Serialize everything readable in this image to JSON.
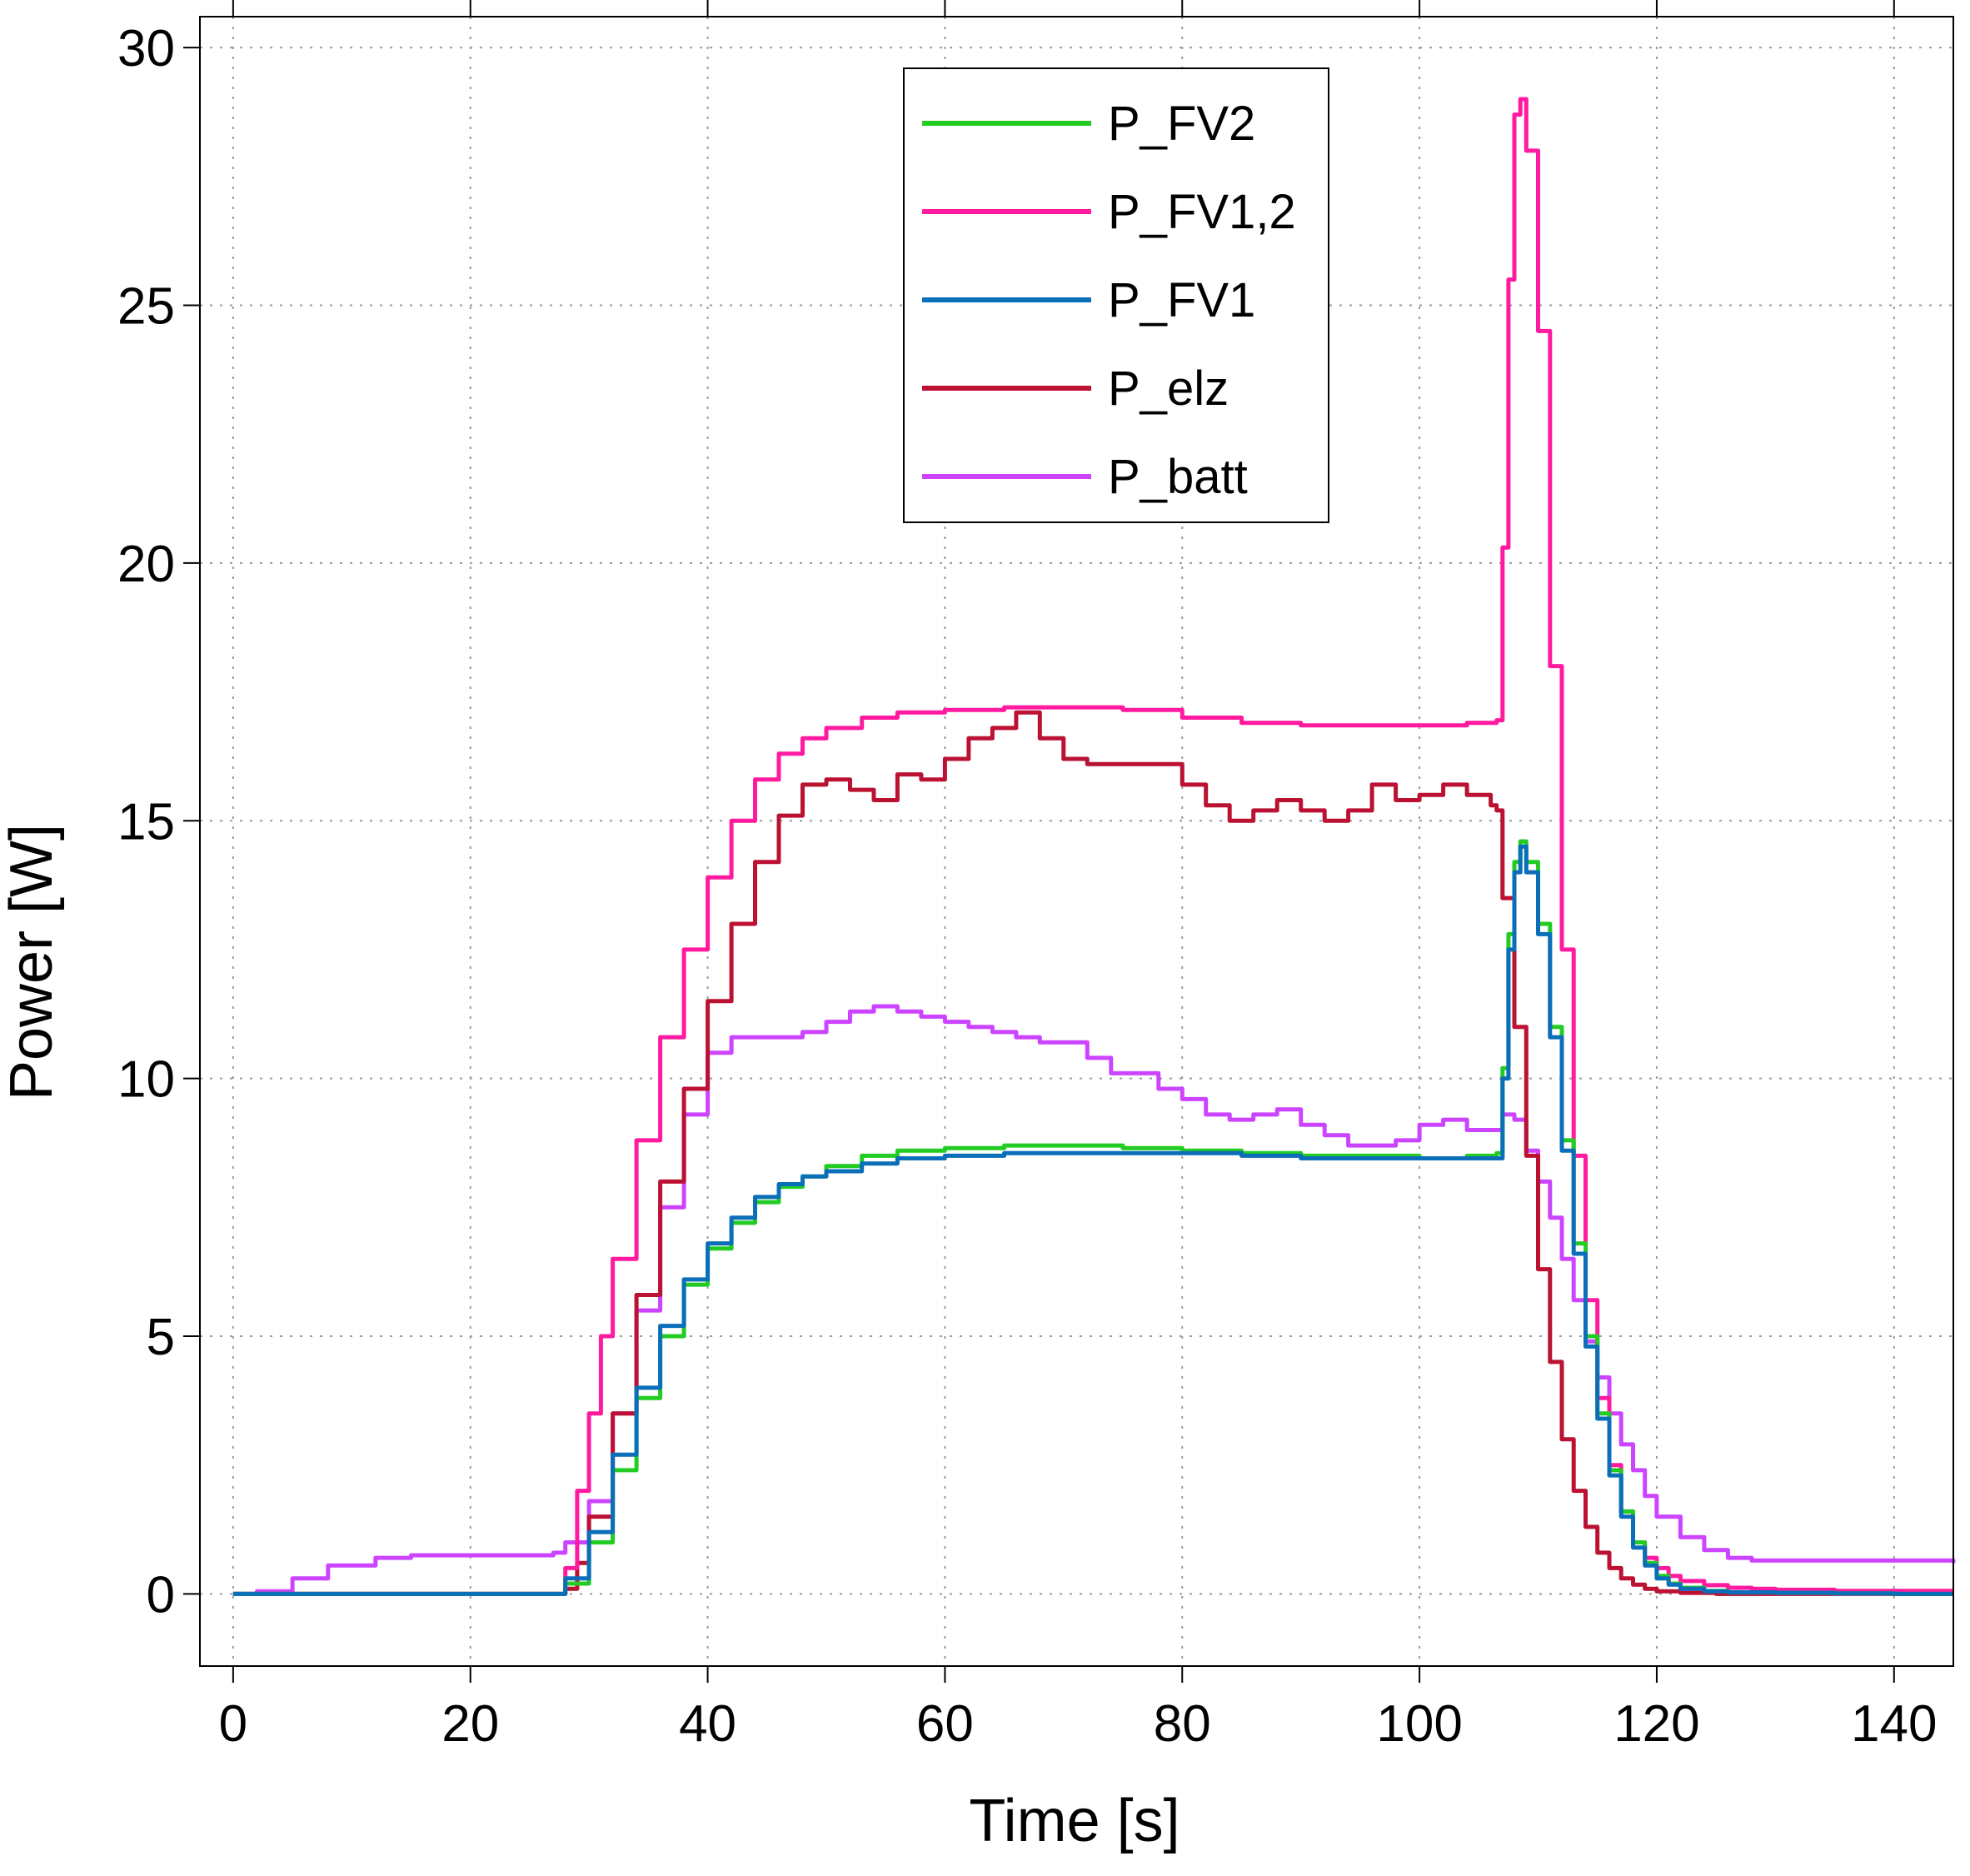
{
  "chart_data": {
    "type": "line",
    "title": "",
    "xlabel": "Time [s]",
    "ylabel": "Power [W]",
    "xlim": [
      -2.8,
      145
    ],
    "ylim": [
      -1.4,
      30.6
    ],
    "xticks": [
      0,
      20,
      40,
      60,
      80,
      100,
      120,
      140
    ],
    "yticks": [
      0,
      5,
      10,
      15,
      20,
      25,
      30
    ],
    "grid": true,
    "legend_position": "top-center",
    "series": [
      {
        "name": "P_FV2",
        "color": "#22cc22",
        "x": [
          0,
          27,
          28,
          30,
          32,
          34,
          36,
          38,
          40,
          42,
          44,
          46,
          48,
          50,
          53,
          56,
          60,
          65,
          70,
          75,
          80,
          85,
          90,
          95,
          100,
          104,
          106.5,
          107,
          107.5,
          108,
          108.5,
          109,
          110,
          111,
          112,
          113,
          114,
          115,
          116,
          117,
          118,
          119,
          120,
          121,
          122,
          124,
          126,
          130,
          135,
          140,
          145
        ],
        "values": [
          0,
          0,
          0.2,
          1.0,
          2.4,
          3.8,
          5.0,
          6.0,
          6.7,
          7.2,
          7.6,
          7.9,
          8.1,
          8.3,
          8.5,
          8.6,
          8.65,
          8.7,
          8.7,
          8.65,
          8.6,
          8.55,
          8.5,
          8.5,
          8.45,
          8.5,
          8.55,
          10.2,
          12.8,
          14.2,
          14.6,
          14.2,
          13.0,
          11.0,
          8.8,
          6.8,
          5.0,
          3.5,
          2.4,
          1.6,
          1.0,
          0.6,
          0.35,
          0.2,
          0.12,
          0.06,
          0.03,
          0.02,
          0.01,
          0.0,
          0.0
        ]
      },
      {
        "name": "P_FV1,2",
        "color": "#ff1aa0",
        "x": [
          0,
          27,
          28,
          29,
          30,
          31,
          32,
          34,
          36,
          38,
          40,
          42,
          44,
          46,
          48,
          50,
          53,
          56,
          60,
          65,
          70,
          75,
          80,
          85,
          90,
          95,
          100,
          104,
          106.5,
          107,
          107.5,
          108,
          108.5,
          109,
          110,
          111,
          112,
          113,
          114,
          115,
          116,
          117,
          118,
          119,
          120,
          121,
          122,
          124,
          126,
          128,
          130,
          135,
          140,
          145
        ],
        "values": [
          0,
          0,
          0.5,
          2.0,
          3.5,
          5.0,
          6.5,
          8.8,
          10.8,
          12.5,
          13.9,
          15.0,
          15.8,
          16.3,
          16.6,
          16.8,
          17.0,
          17.1,
          17.15,
          17.2,
          17.2,
          17.15,
          17.0,
          16.9,
          16.85,
          16.85,
          16.85,
          16.9,
          16.95,
          20.3,
          25.5,
          28.7,
          29.0,
          28.0,
          24.5,
          18.0,
          12.5,
          8.5,
          5.7,
          3.8,
          2.5,
          1.6,
          1.0,
          0.7,
          0.5,
          0.35,
          0.25,
          0.17,
          0.12,
          0.1,
          0.08,
          0.06,
          0.06,
          0.06
        ]
      },
      {
        "name": "P_FV1",
        "color": "#0a6fb8",
        "x": [
          0,
          27,
          28,
          30,
          32,
          34,
          36,
          38,
          40,
          42,
          44,
          46,
          48,
          50,
          53,
          56,
          60,
          65,
          70,
          75,
          80,
          85,
          90,
          95,
          100,
          104,
          106.5,
          107,
          107.5,
          108,
          108.5,
          109,
          110,
          111,
          112,
          113,
          114,
          115,
          116,
          117,
          118,
          119,
          120,
          121,
          122,
          124,
          126,
          130,
          135,
          140,
          145
        ],
        "values": [
          0,
          0,
          0.3,
          1.2,
          2.7,
          4.0,
          5.2,
          6.1,
          6.8,
          7.3,
          7.7,
          7.95,
          8.1,
          8.2,
          8.35,
          8.45,
          8.5,
          8.55,
          8.55,
          8.55,
          8.55,
          8.5,
          8.45,
          8.45,
          8.45,
          8.45,
          8.45,
          10.0,
          12.5,
          14.0,
          14.5,
          14.0,
          12.8,
          10.8,
          8.6,
          6.6,
          4.8,
          3.4,
          2.3,
          1.5,
          0.9,
          0.55,
          0.3,
          0.18,
          0.1,
          0.05,
          0.03,
          0.02,
          0.01,
          0.0,
          0.0
        ]
      },
      {
        "name": "P_elz",
        "color": "#bb1133",
        "x": [
          0,
          27,
          28,
          29,
          30,
          32,
          34,
          36,
          38,
          40,
          42,
          44,
          46,
          48,
          50,
          52,
          54,
          56,
          58,
          60,
          62,
          64,
          66,
          68,
          70,
          72,
          74,
          76,
          78,
          80,
          82,
          84,
          86,
          88,
          90,
          92,
          94,
          96,
          98,
          100,
          102,
          104,
          106,
          106.5,
          107,
          108,
          109,
          110,
          111,
          112,
          113,
          114,
          115,
          116,
          117,
          118,
          119,
          120,
          122,
          125,
          130,
          135,
          140,
          145
        ],
        "values": [
          0,
          0,
          0.1,
          0.6,
          1.5,
          3.5,
          5.8,
          8.0,
          9.8,
          11.5,
          13.0,
          14.2,
          15.1,
          15.7,
          15.8,
          15.6,
          15.4,
          15.9,
          15.8,
          16.2,
          16.6,
          16.8,
          17.1,
          16.6,
          16.2,
          16.1,
          16.1,
          16.1,
          16.1,
          15.7,
          15.3,
          15.0,
          15.2,
          15.4,
          15.2,
          15.0,
          15.2,
          15.7,
          15.4,
          15.5,
          15.7,
          15.5,
          15.3,
          15.2,
          13.5,
          11.0,
          8.5,
          6.3,
          4.5,
          3.0,
          2.0,
          1.3,
          0.8,
          0.5,
          0.3,
          0.18,
          0.1,
          0.05,
          0.02,
          0.0,
          0.0,
          0.0,
          0.0,
          0.0
        ]
      },
      {
        "name": "P_batt",
        "color": "#cc44ff",
        "x": [
          0,
          2,
          5,
          8,
          12,
          15,
          20,
          25,
          27,
          28,
          30,
          32,
          34,
          36,
          38,
          40,
          42,
          44,
          46,
          48,
          50,
          52,
          54,
          56,
          58,
          60,
          62,
          64,
          66,
          68,
          70,
          72,
          74,
          76,
          78,
          80,
          82,
          84,
          86,
          88,
          90,
          92,
          94,
          96,
          98,
          100,
          102,
          104,
          106,
          107,
          108,
          109,
          110,
          111,
          112,
          113,
          114,
          115,
          116,
          117,
          118,
          119,
          120,
          122,
          124,
          126,
          128,
          130,
          135,
          140,
          145
        ],
        "values": [
          0,
          0.05,
          0.3,
          0.55,
          0.7,
          0.75,
          0.75,
          0.75,
          0.8,
          1.0,
          1.8,
          3.5,
          5.5,
          7.5,
          9.3,
          10.5,
          10.8,
          10.8,
          10.8,
          10.9,
          11.1,
          11.3,
          11.4,
          11.3,
          11.2,
          11.1,
          11.0,
          10.9,
          10.8,
          10.7,
          10.7,
          10.4,
          10.1,
          10.1,
          9.8,
          9.6,
          9.3,
          9.2,
          9.3,
          9.4,
          9.1,
          8.9,
          8.7,
          8.7,
          8.8,
          9.1,
          9.2,
          9.0,
          9.0,
          9.3,
          9.2,
          8.6,
          8.0,
          7.3,
          6.5,
          5.7,
          4.9,
          4.2,
          3.5,
          2.9,
          2.4,
          1.9,
          1.5,
          1.1,
          0.85,
          0.7,
          0.65,
          0.65,
          0.65,
          0.65,
          0.6
        ]
      }
    ]
  }
}
